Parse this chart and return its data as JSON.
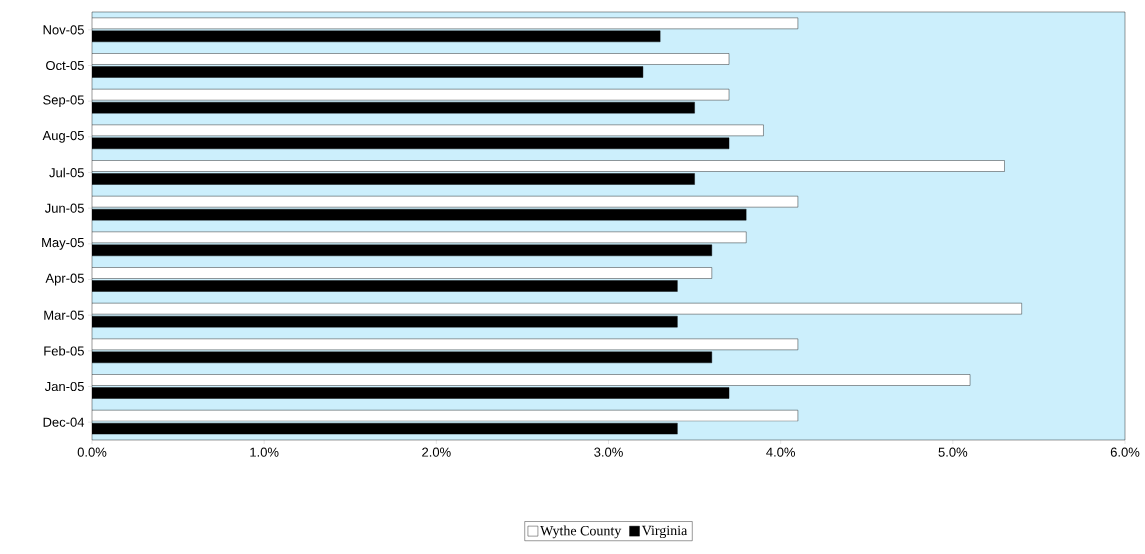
{
  "chart_data": {
    "type": "bar",
    "orientation": "horizontal",
    "categories": [
      "Nov-05",
      "Oct-05",
      "Sep-05",
      "Aug-05",
      "Jul-05",
      "Jun-05",
      "May-05",
      "Apr-05",
      "Mar-05",
      "Feb-05",
      "Jan-05",
      "Dec-04"
    ],
    "series": [
      {
        "name": "Wythe County",
        "color": "#ffffff",
        "values": [
          4.1,
          3.7,
          3.7,
          3.9,
          5.3,
          4.1,
          3.8,
          3.6,
          5.4,
          4.1,
          5.1,
          4.1
        ]
      },
      {
        "name": "Virginia",
        "color": "#000000",
        "values": [
          3.3,
          3.2,
          3.5,
          3.7,
          3.5,
          3.8,
          3.6,
          3.4,
          3.4,
          3.6,
          3.7,
          3.4
        ]
      }
    ],
    "xlim": [
      0,
      6
    ],
    "xticks": [
      {
        "value": 0,
        "label": "0.0%"
      },
      {
        "value": 1,
        "label": "1.0%"
      },
      {
        "value": 2,
        "label": "2.0%"
      },
      {
        "value": 3,
        "label": "3.0%"
      },
      {
        "value": 4,
        "label": "4.0%"
      },
      {
        "value": 5,
        "label": "5.0%"
      },
      {
        "value": 6,
        "label": "6.0%"
      }
    ],
    "legend": "bottom",
    "grid": false
  }
}
